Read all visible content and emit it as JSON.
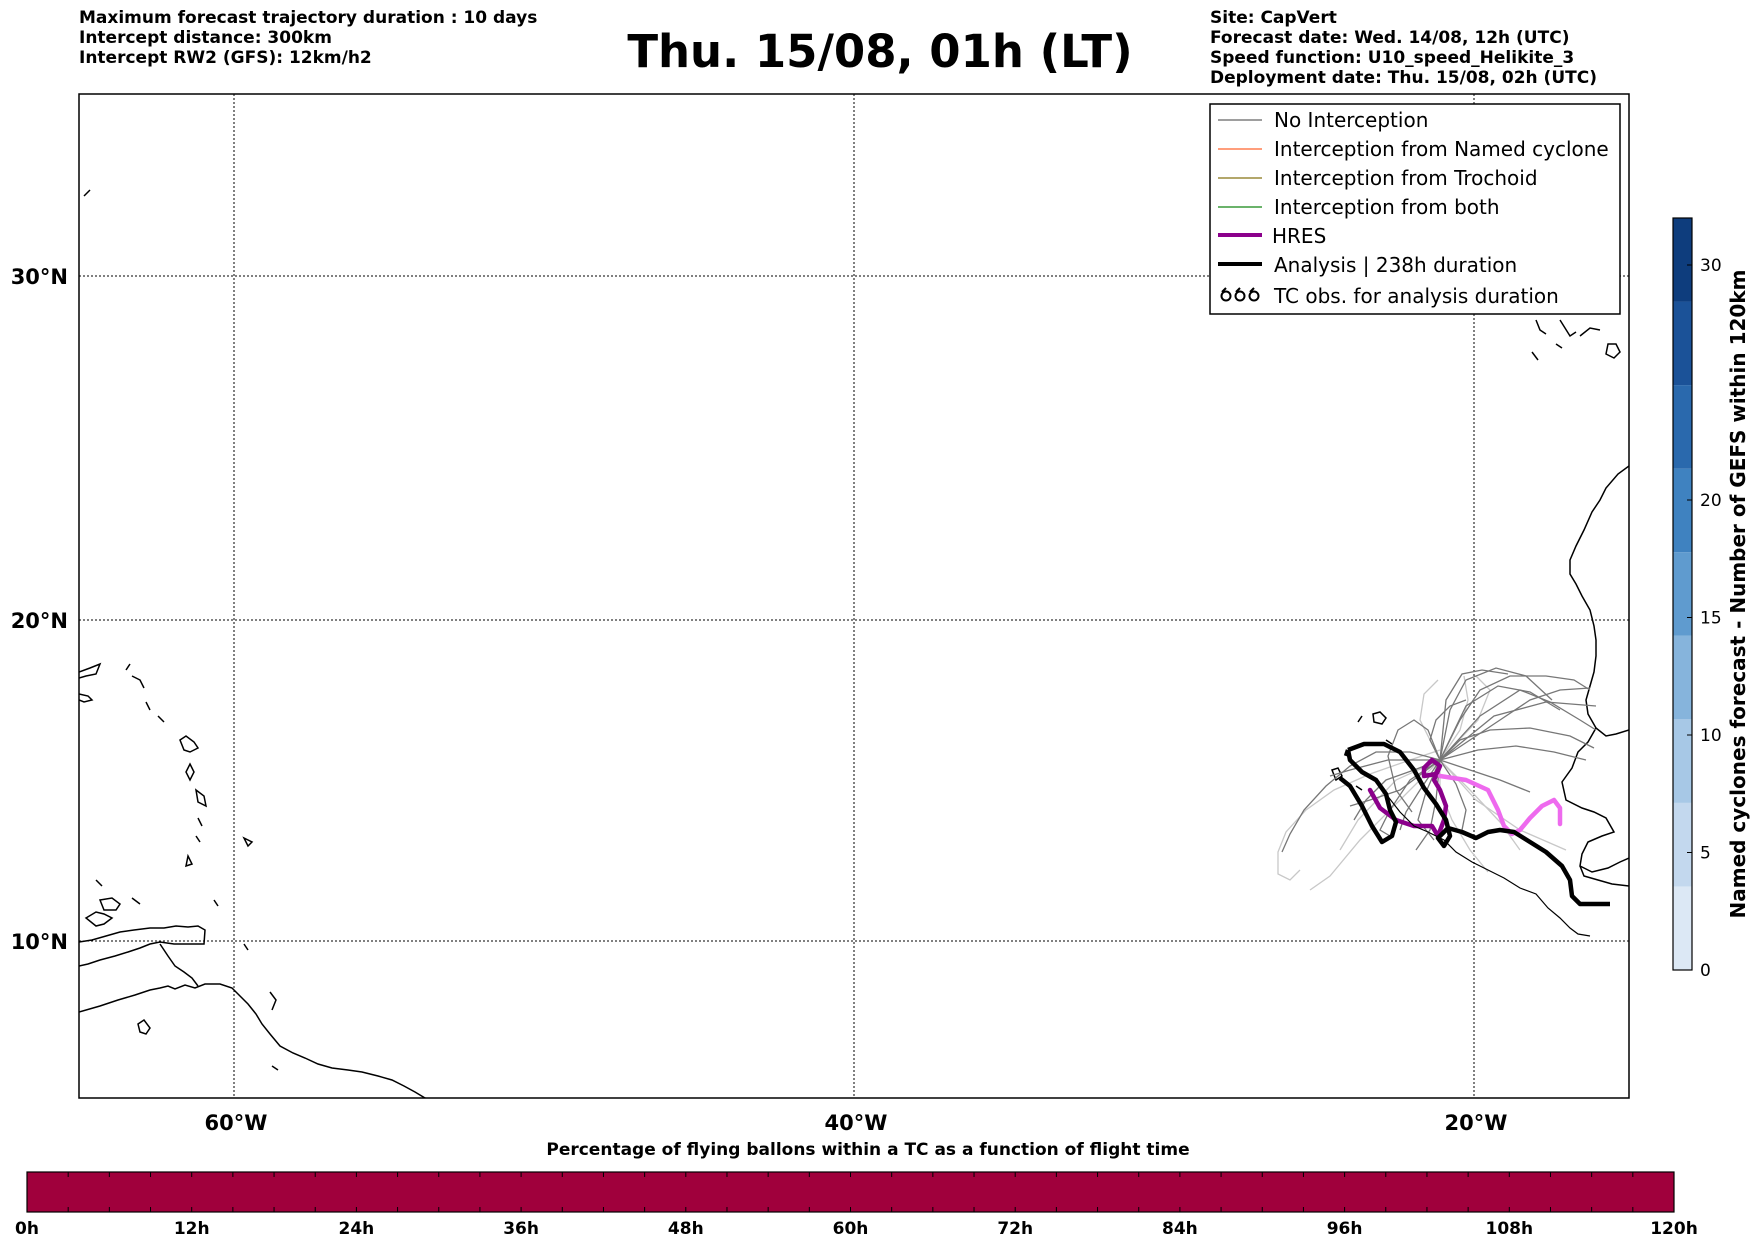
{
  "header": {
    "left_lines": [
      "Maximum forecast trajectory duration : 10 days",
      "Intercept distance: 300km",
      "Intercept RW2 (GFS):  12km/h2"
    ],
    "title": "Thu. 15/08, 01h (LT)",
    "right_lines": [
      "Site: CapVert",
      "Forecast date: Wed. 14/08, 12h (UTC)",
      "Speed function: U10_speed_Helikite_3",
      "Deployment date: Thu. 15/08, 02h (UTC)"
    ]
  },
  "map": {
    "lon_range": [
      -65,
      15
    ],
    "lat_range": [
      5.5,
      34.7
    ],
    "lat_ticks": [
      {
        "value": 30,
        "label": "30°N"
      },
      {
        "value": 20,
        "label": "20°N"
      },
      {
        "value": 10,
        "label": "10°N"
      }
    ],
    "lon_ticks": [
      {
        "value": -60,
        "label": "60°W"
      },
      {
        "value": -40,
        "label": "40°W"
      },
      {
        "value": -20,
        "label": "20°W"
      }
    ],
    "coast_color": "#000000",
    "grid": "dotted"
  },
  "legend": {
    "items": [
      {
        "label": "No Interception",
        "color": "#7f7f7f",
        "style": "thin"
      },
      {
        "label": "Interception from Named cyclone",
        "color": "#ff7f50",
        "style": "thin"
      },
      {
        "label": "Interception from Trochoid",
        "color": "#9a8a3a",
        "style": "thin"
      },
      {
        "label": "Interception from both",
        "color": "#3a9a3a",
        "style": "thin"
      },
      {
        "label": "HRES",
        "color": "#8b008b",
        "style": "thick"
      },
      {
        "label": "Analysis | 238h duration",
        "color": "#000000",
        "style": "thick"
      },
      {
        "label": "TC obs. for analysis duration",
        "icon": "tc-symbol",
        "style": "symbol"
      }
    ]
  },
  "right_colorbar": {
    "label": "Named cyclones forecast - Number of GEFS within 120km",
    "ticks": [
      0,
      5,
      10,
      15,
      20,
      30
    ],
    "range": [
      0,
      32
    ],
    "colors": [
      "#dce8f5",
      "#c3d8ee",
      "#a7c8e6",
      "#86b4dc",
      "#5f9bcf",
      "#3f82c0",
      "#2a69ad",
      "#1b5298",
      "#0e3d7d"
    ]
  },
  "bottom_colorbar": {
    "title": "Percentage of flying ballons within a TC as a function of flight time",
    "ticks": [
      "0h",
      "12h",
      "24h",
      "36h",
      "48h",
      "60h",
      "72h",
      "84h",
      "96h",
      "108h",
      "120h"
    ],
    "color": "#a0003c"
  },
  "trajectories": {
    "analysis_color": "#000000",
    "hres_color": "#8b008b",
    "hres_tail_color": "#ee6aee",
    "ensemble_color": "#777777",
    "ensemble_light_color": "#c8c8c8"
  }
}
